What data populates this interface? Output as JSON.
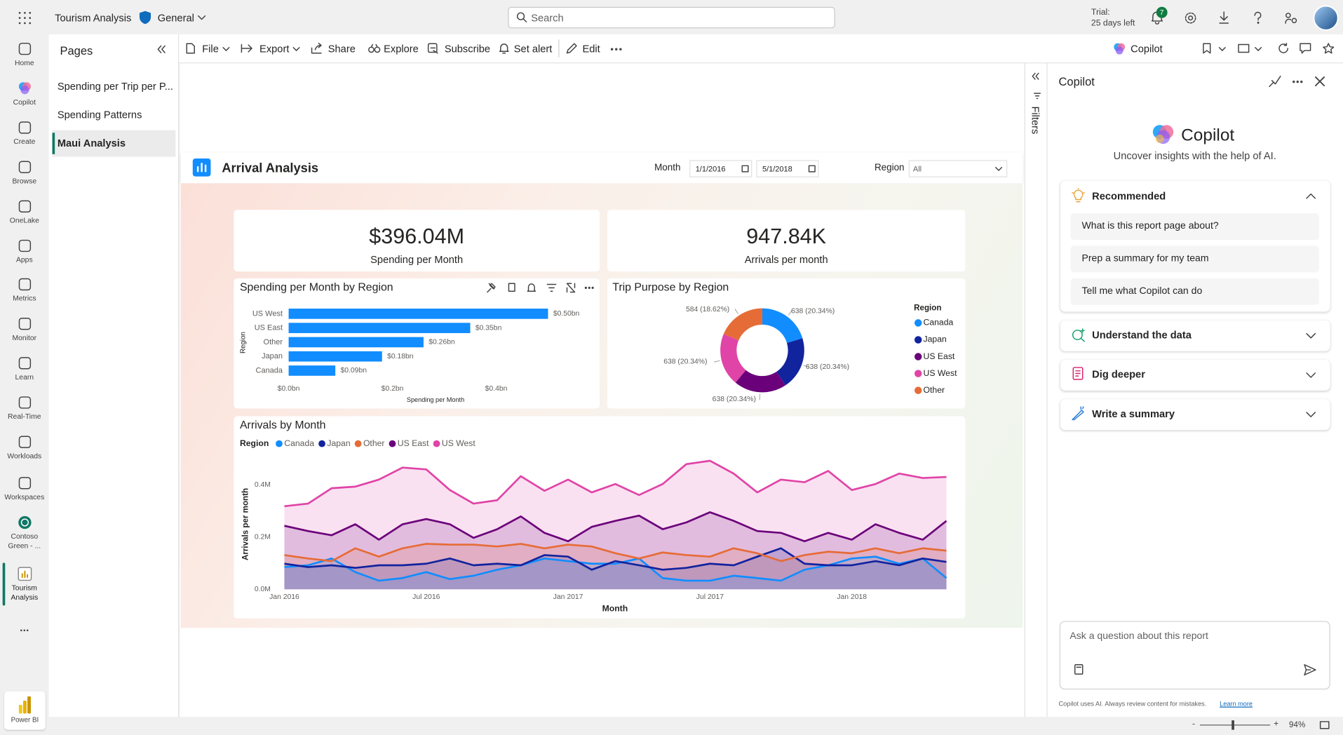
{
  "top_bar": {
    "app_name": "Tourism Analysis",
    "workspace": "General",
    "search_placeholder": "Search",
    "trial_label": "Trial:",
    "trial_days": "25 days left",
    "notification_count": "7"
  },
  "nav": [
    "Home",
    "Copilot",
    "Create",
    "Browse",
    "OneLake",
    "Apps",
    "Metrics",
    "Monitor",
    "Learn",
    "Real-Time",
    "Workloads",
    "Workspaces",
    "Contoso Green - ...",
    "Tourism Analysis"
  ],
  "nav_more": "...",
  "nav_product": "Power BI",
  "pages_pane": {
    "title": "Pages",
    "items": [
      "Spending per Trip per P...",
      "Spending Patterns",
      "Maui Analysis"
    ]
  },
  "toolbar": {
    "items": [
      "File",
      "Export",
      "Share",
      "Explore",
      "Subscribe",
      "Set alert",
      "Edit"
    ],
    "copilot": "Copilot"
  },
  "report": {
    "title": "Arrival Analysis",
    "month_label": "Month",
    "date_start": "1/1/2016",
    "date_end": "5/1/2018",
    "region_label": "Region",
    "region_value": "All",
    "cards": [
      {
        "value": "$396.04M",
        "label": "Spending per Month"
      },
      {
        "value": "947.84K",
        "label": "Arrivals per month"
      }
    ]
  },
  "chart_data": [
    {
      "type": "bar",
      "title": "Spending per Month by Region",
      "x_label": "Spending per Month",
      "y_label": "Region",
      "categories": [
        "US West",
        "US East",
        "Other",
        "Japan",
        "Canada"
      ],
      "values": [
        0.5,
        0.35,
        0.26,
        0.18,
        0.09
      ],
      "value_labels": [
        "$0.50bn",
        "$0.35bn",
        "$0.26bn",
        "$0.18bn",
        "$0.09bn"
      ],
      "color": "#118DFF",
      "xlim": [
        0,
        0.52
      ],
      "xticks": [
        {
          "value": 0,
          "label": "$0.0bn"
        },
        {
          "value": 0.2,
          "label": "$0.2bn"
        },
        {
          "value": 0.4,
          "label": "$0.4bn"
        }
      ]
    },
    {
      "type": "pie",
      "title": "Trip Purpose by Region",
      "legend_title": "Region",
      "categories": [
        "Canada",
        "Japan",
        "US East",
        "US West",
        "Other"
      ],
      "values": [
        638,
        638,
        638,
        638,
        584
      ],
      "value_labels": [
        "638 (20.34%)",
        "638 (20.34%)",
        "638 (20.34%)",
        "638 (20.34%)",
        "584 (18.62%)"
      ],
      "colors": [
        "#118DFF",
        "#12239E",
        "#6B007B",
        "#E044A7",
        "#E66C37"
      ]
    },
    {
      "type": "area",
      "title": "Arrivals by Month",
      "legend_title": "Region",
      "x_label": "Month",
      "y_label": "Arrivals per month",
      "categories": [
        "Jan 2016",
        null,
        null,
        null,
        null,
        null,
        "Jul 2016",
        null,
        null,
        null,
        null,
        null,
        "Jan 2017",
        null,
        null,
        null,
        null,
        null,
        "Jul 2017",
        null,
        null,
        null,
        null,
        null,
        "Jan 2018",
        null,
        null,
        null,
        null
      ],
      "ylim": [
        0,
        500000
      ],
      "yticks": [
        {
          "value": 0,
          "label": "0.0M"
        },
        {
          "value": 200000,
          "label": "0.2M"
        },
        {
          "value": 400000,
          "label": "0.4M"
        }
      ],
      "series": [
        {
          "name": "Canada",
          "color": "#118DFF",
          "values": [
            85000,
            92000,
            118000,
            66000,
            33000,
            43000,
            66000,
            39000,
            52000,
            75000,
            92000,
            118000,
            108000,
            98000,
            98000,
            118000,
            43000,
            33000,
            33000,
            52000,
            43000,
            33000,
            75000,
            92000,
            118000,
            125000,
            98000,
            118000,
            43000
          ]
        },
        {
          "name": "Japan",
          "color": "#12239E",
          "values": [
            98000,
            85000,
            92000,
            82000,
            92000,
            92000,
            98000,
            118000,
            92000,
            98000,
            92000,
            131000,
            125000,
            75000,
            108000,
            92000,
            75000,
            82000,
            98000,
            92000,
            125000,
            157000,
            98000,
            92000,
            92000,
            108000,
            92000,
            118000,
            105000
          ]
        },
        {
          "name": "Other",
          "color": "#E66C37",
          "values": [
            131000,
            118000,
            108000,
            157000,
            125000,
            157000,
            174000,
            171000,
            171000,
            164000,
            174000,
            157000,
            171000,
            164000,
            138000,
            118000,
            141000,
            131000,
            125000,
            157000,
            138000,
            108000,
            131000,
            144000,
            138000,
            157000,
            138000,
            157000,
            148000
          ]
        },
        {
          "name": "US East",
          "color": "#6B007B",
          "values": [
            243000,
            223000,
            207000,
            249000,
            190000,
            249000,
            269000,
            249000,
            197000,
            230000,
            279000,
            216000,
            184000,
            239000,
            262000,
            282000,
            230000,
            256000,
            295000,
            262000,
            223000,
            216000,
            184000,
            216000,
            190000,
            249000,
            216000,
            190000,
            262000
          ]
        },
        {
          "name": "US West",
          "color": "#E044A7",
          "values": [
            318000,
            328000,
            387000,
            393000,
            420000,
            466000,
            459000,
            380000,
            328000,
            341000,
            433000,
            377000,
            420000,
            371000,
            403000,
            361000,
            403000,
            479000,
            492000,
            443000,
            371000,
            420000,
            410000,
            453000,
            380000,
            403000,
            443000,
            426000,
            430000
          ]
        }
      ]
    }
  ],
  "filters_label": "Filters",
  "copilot": {
    "header": "Copilot",
    "hero_title": "Copilot",
    "hero_subtitle": "Uncover insights with the help of AI.",
    "recommended": {
      "title": "Recommended",
      "prompts": [
        "What is this report page about?",
        "Prep a summary for my team",
        "Tell me what Copilot can do"
      ]
    },
    "sections": [
      "Understand the data",
      "Dig deeper",
      "Write a summary"
    ],
    "input_placeholder": "Ask a question about this report",
    "disclaimer": "Copilot uses AI. Always review content for mistakes.",
    "learn_more": "Learn more"
  },
  "status_bar": {
    "zoom": "94%"
  }
}
